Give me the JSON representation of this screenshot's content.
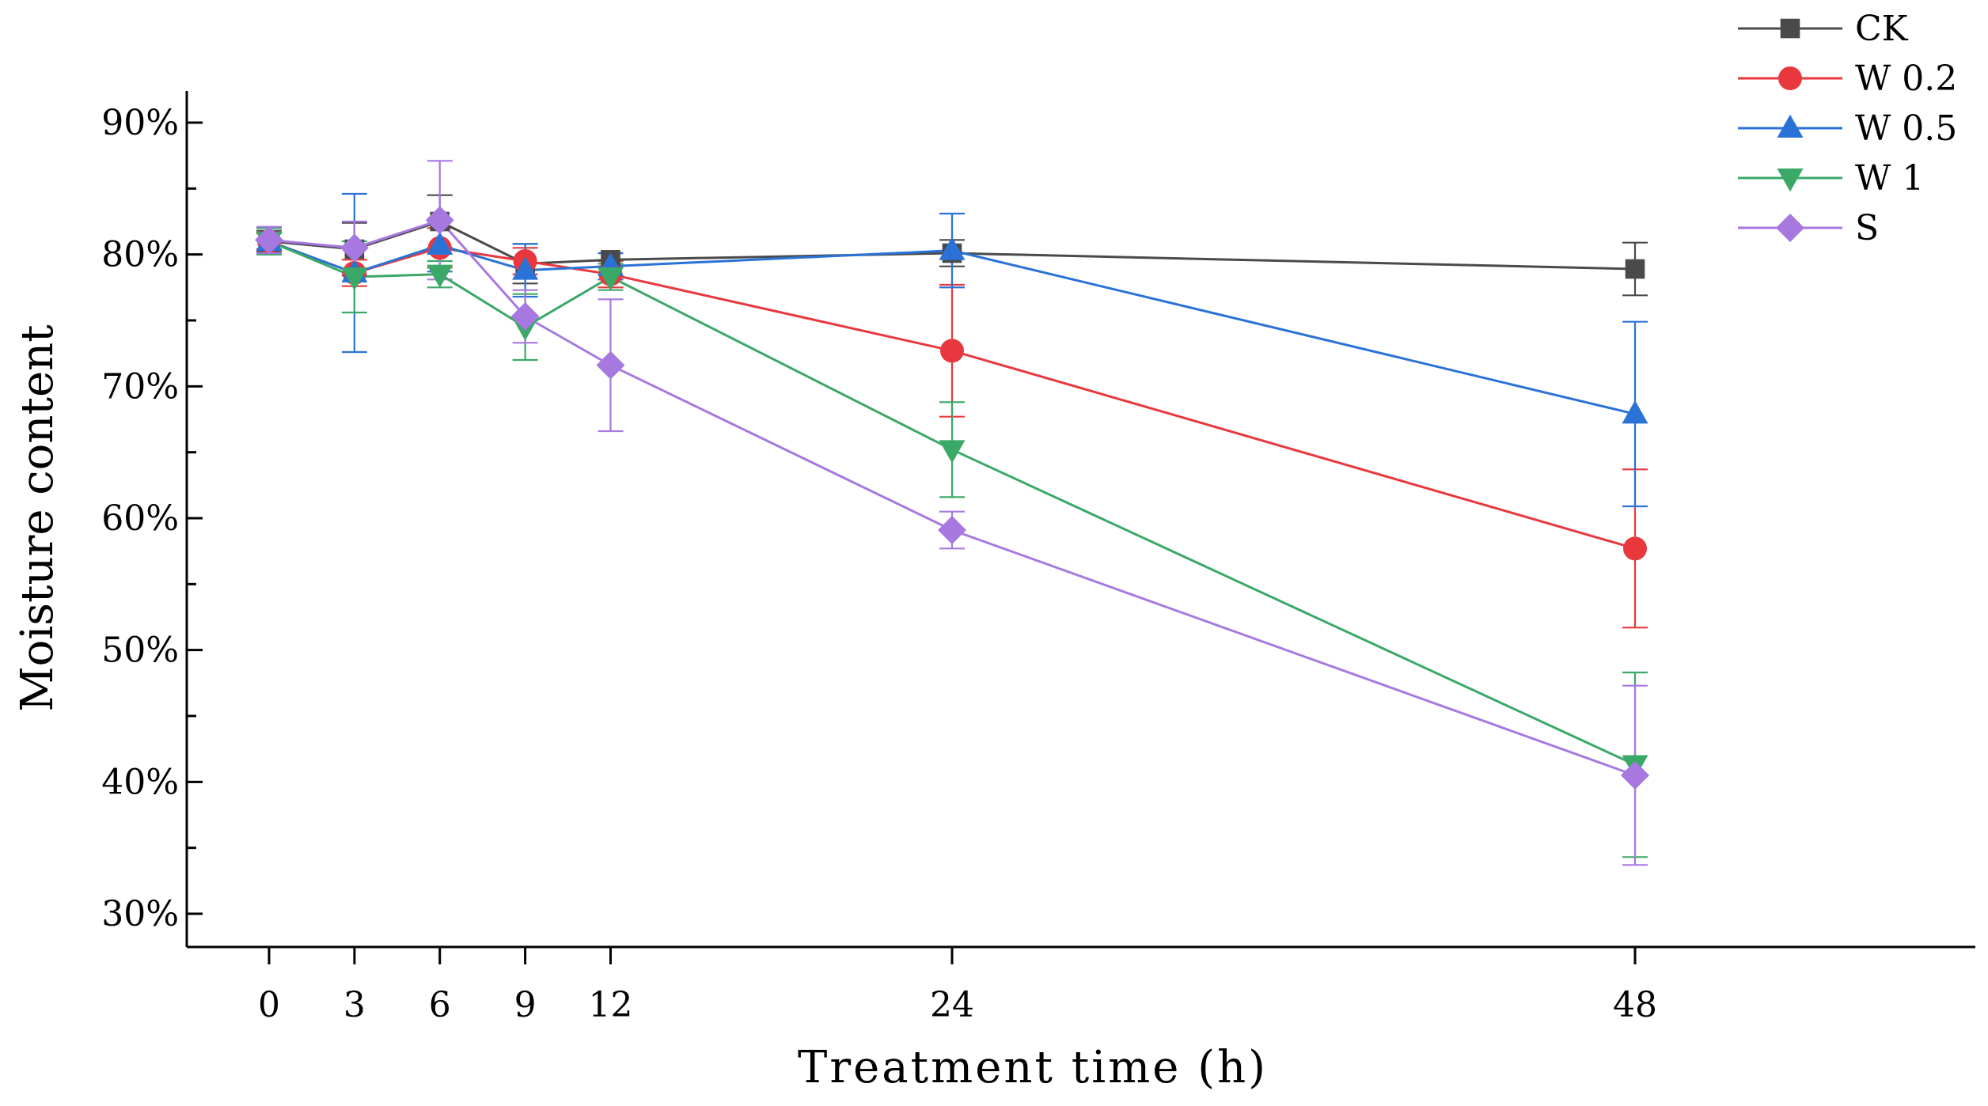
{
  "chart_data": {
    "type": "line",
    "title": "",
    "xlabel": "Treatment time (h)",
    "ylabel": "Moisture content",
    "x": [
      0,
      3,
      6,
      9,
      12,
      24,
      48
    ],
    "x_tick_labels": [
      "0",
      "3",
      "6",
      "9",
      "12",
      "24",
      "48"
    ],
    "xlim": [
      -3,
      60
    ],
    "ylim": [
      27.5,
      92.5
    ],
    "y_ticks": [
      30,
      40,
      50,
      60,
      70,
      80,
      90
    ],
    "y_tick_labels": [
      "30%",
      "40%",
      "50%",
      "60%",
      "70%",
      "80%",
      "90%"
    ],
    "y_unit": "%",
    "grid": false,
    "legend_position": "top-right",
    "series": [
      {
        "name": "CK",
        "color": "#4a4a4a",
        "marker": "square",
        "values": [
          81.0,
          80.4,
          82.5,
          79.3,
          79.6,
          80.1,
          78.9
        ],
        "errors": [
          0.8,
          2.0,
          2.0,
          1.5,
          0.5,
          1.0,
          2.0
        ]
      },
      {
        "name": "W 0.2",
        "color": "#e8383d",
        "marker": "circle",
        "values": [
          81.0,
          78.6,
          80.5,
          79.5,
          78.5,
          72.7,
          57.7
        ],
        "errors": [
          0.6,
          1.0,
          1.5,
          1.0,
          1.0,
          5.0,
          6.0
        ]
      },
      {
        "name": "W 0.5",
        "color": "#2a72d6",
        "marker": "triangle-up",
        "values": [
          81.0,
          78.6,
          80.7,
          78.8,
          79.1,
          80.3,
          67.9
        ],
        "errors": [
          1.0,
          6.0,
          2.0,
          2.0,
          1.0,
          2.8,
          7.0
        ]
      },
      {
        "name": "W 1",
        "color": "#3aa867",
        "marker": "triangle-down",
        "values": [
          81.0,
          78.3,
          78.5,
          74.5,
          78.3,
          65.2,
          41.3
        ],
        "errors": [
          1.0,
          2.7,
          1.0,
          2.5,
          1.0,
          3.6,
          7.0
        ]
      },
      {
        "name": "S",
        "color": "#a779e0",
        "marker": "diamond",
        "values": [
          81.1,
          80.5,
          82.6,
          75.3,
          71.6,
          59.1,
          40.5
        ],
        "errors": [
          1.0,
          2.0,
          4.5,
          2.0,
          5.0,
          1.4,
          6.8
        ]
      }
    ]
  }
}
